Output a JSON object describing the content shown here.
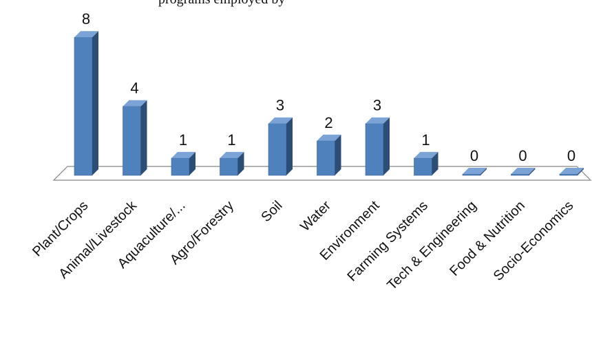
{
  "chart_data": {
    "type": "bar",
    "title": "programs employed by",
    "categories": [
      "Plant/Crops",
      "Animal/Livestock",
      "Aquaculture/...",
      "Agro/Forestry",
      "Soil",
      "Water",
      "Environment",
      "Farming Systems",
      "Tech & Engineering",
      "Food & Nutrition",
      "Socio-Economics"
    ],
    "values": [
      8,
      4,
      1,
      1,
      3,
      2,
      3,
      1,
      0,
      0,
      0
    ],
    "xlabel": "",
    "ylabel": "",
    "ylim": [
      0,
      8
    ],
    "grid": false,
    "legend": "none",
    "bar_color": "#4F81BD",
    "bar_side_color": "#2C4D75",
    "bar_top_color": "#7BA3D6"
  }
}
